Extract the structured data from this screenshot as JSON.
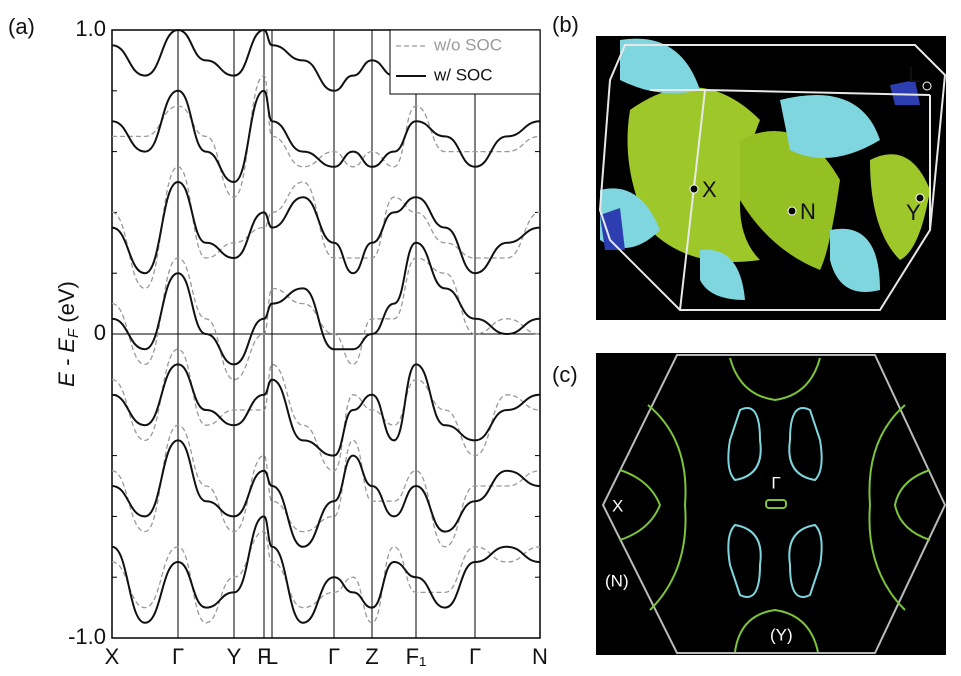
{
  "chart_data": {
    "type": "line",
    "panel_label": "(a)",
    "ylabel": [
      "E - E",
      "F",
      " (eV)"
    ],
    "x": [
      0,
      33,
      66,
      94,
      122,
      152,
      160,
      191,
      222,
      241,
      260,
      282,
      304,
      333,
      363,
      395,
      428
    ],
    "xlim": [
      0,
      428
    ],
    "xticks": [
      {
        "value": 0,
        "label": "X"
      },
      {
        "value": 66,
        "label": "Γ"
      },
      {
        "value": 122,
        "label": "Y"
      },
      {
        "value": 152,
        "label": "F"
      },
      {
        "value": 160,
        "label": "L"
      },
      {
        "value": 222,
        "label": "Γ"
      },
      {
        "value": 260,
        "label": "Z"
      },
      {
        "value": 304,
        "label": "F₁"
      },
      {
        "value": 363,
        "label": "Γ"
      },
      {
        "value": 428,
        "label": "N"
      }
    ],
    "ylim": [
      -1,
      1
    ],
    "yticks": [
      {
        "value": -1,
        "label": "-1.0"
      },
      0,
      {
        "value": 1,
        "label": "1.0"
      }
    ],
    "legend": "upper right",
    "series": [
      {
        "name": "w/o SOC",
        "color": "#9a9a9a",
        "dashed": true,
        "bands": [
          [
            -0.75,
            -0.9,
            -0.7,
            -0.95,
            -0.8,
            -0.65,
            -0.75,
            -0.9,
            -0.85,
            -0.8,
            -0.95,
            -0.7,
            -0.85,
            -0.85,
            -0.7,
            -0.75,
            -0.7
          ],
          [
            -0.45,
            -0.65,
            -0.3,
            -0.5,
            -0.65,
            -0.4,
            -0.55,
            -0.65,
            -0.6,
            -0.35,
            -0.55,
            -0.55,
            -0.45,
            -0.7,
            -0.5,
            -0.5,
            -0.45
          ],
          [
            -0.15,
            -0.35,
            -0.05,
            -0.3,
            -0.25,
            -0.25,
            -0.1,
            -0.3,
            -0.45,
            -0.2,
            -0.25,
            -0.3,
            -0.15,
            -0.25,
            -0.4,
            -0.2,
            -0.25
          ],
          [
            0.1,
            -0.1,
            0.25,
            0.05,
            -0.15,
            0.0,
            0.15,
            0.1,
            0.0,
            -0.1,
            0.05,
            0.05,
            0.25,
            0.2,
            0.0,
            0.05,
            0.0
          ],
          [
            0.4,
            0.15,
            0.55,
            0.25,
            0.3,
            0.35,
            0.4,
            0.5,
            0.25,
            0.25,
            0.25,
            0.45,
            0.4,
            0.3,
            0.25,
            0.25,
            0.4
          ],
          [
            0.65,
            0.65,
            0.75,
            0.65,
            0.45,
            0.85,
            0.65,
            0.55,
            0.6,
            0.55,
            0.6,
            0.55,
            0.75,
            0.6,
            0.6,
            0.6,
            0.65
          ]
        ]
      },
      {
        "name": "w/ SOC",
        "color": "#111111",
        "dashed": false,
        "bands": [
          [
            -0.7,
            -0.95,
            -0.75,
            -0.9,
            -0.85,
            -0.6,
            -0.7,
            -0.95,
            -0.8,
            -0.85,
            -0.9,
            -0.75,
            -0.8,
            -0.9,
            -0.75,
            -0.7,
            -0.75
          ],
          [
            -0.5,
            -0.6,
            -0.35,
            -0.55,
            -0.6,
            -0.45,
            -0.5,
            -0.7,
            -0.55,
            -0.4,
            -0.5,
            -0.6,
            -0.5,
            -0.65,
            -0.55,
            -0.45,
            -0.5
          ],
          [
            -0.2,
            -0.3,
            -0.1,
            -0.25,
            -0.3,
            -0.2,
            -0.15,
            -0.35,
            -0.4,
            -0.25,
            -0.2,
            -0.35,
            -0.1,
            -0.3,
            -0.35,
            -0.25,
            -0.2
          ],
          [
            0.05,
            -0.05,
            0.2,
            0.0,
            -0.1,
            0.05,
            0.1,
            0.15,
            -0.05,
            -0.05,
            0.0,
            0.1,
            0.3,
            0.15,
            0.05,
            0.0,
            0.05
          ],
          [
            0.35,
            0.2,
            0.5,
            0.3,
            0.25,
            0.4,
            0.35,
            0.45,
            0.3,
            0.2,
            0.3,
            0.4,
            0.45,
            0.35,
            0.2,
            0.3,
            0.35
          ],
          [
            0.7,
            0.6,
            0.8,
            0.6,
            0.5,
            0.8,
            0.7,
            0.6,
            0.55,
            0.6,
            0.55,
            0.6,
            0.7,
            0.65,
            0.55,
            0.65,
            0.7
          ],
          [
            0.95,
            0.85,
            1.0,
            0.9,
            0.85,
            1.0,
            0.95,
            0.9,
            0.8,
            0.85,
            0.9,
            0.85,
            0.95,
            0.9,
            0.8,
            0.9,
            0.95
          ]
        ]
      }
    ]
  },
  "panel_b": {
    "label": "(b)",
    "points": [
      "L",
      "X",
      "N",
      "Y"
    ]
  },
  "panel_c": {
    "label": "(c)",
    "points": [
      "Γ",
      "X",
      "(N)",
      "(Y)"
    ]
  }
}
